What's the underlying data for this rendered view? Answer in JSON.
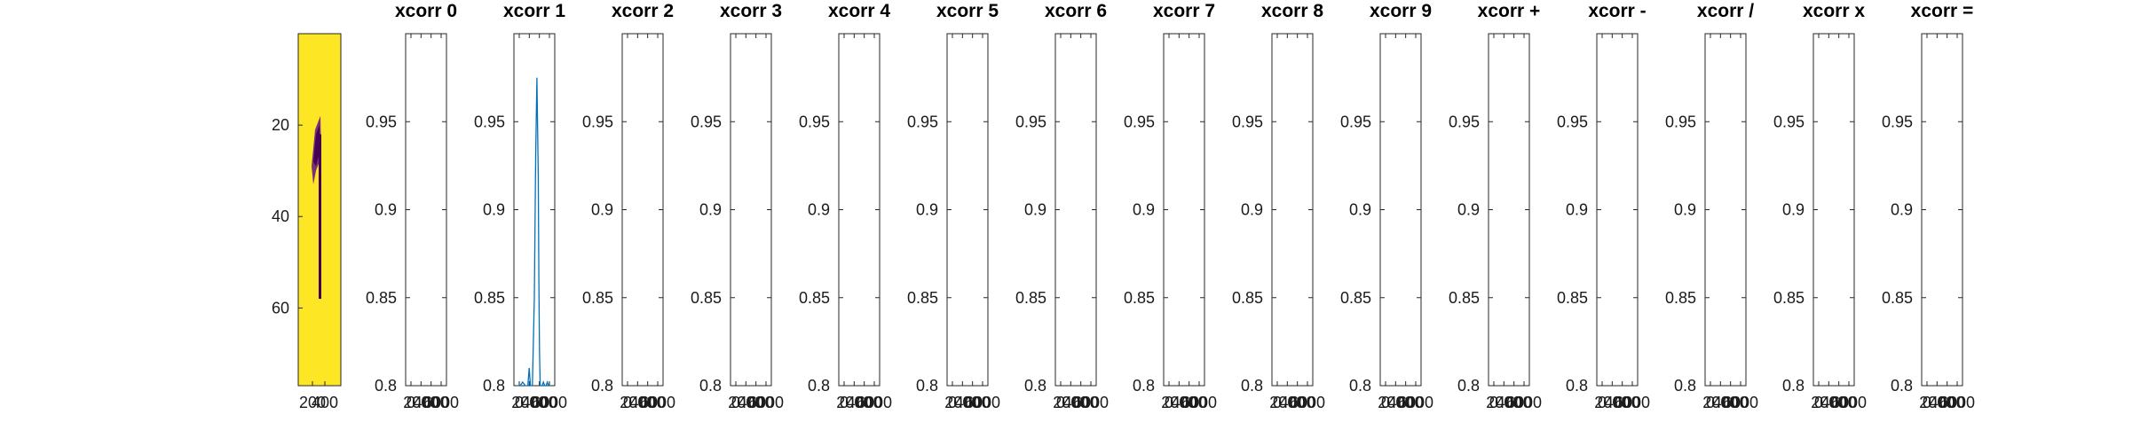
{
  "image_panel": {
    "background_color": "#fde725",
    "glyph_color": "#440154",
    "glyph_edge_color": "#7b2f79",
    "yticks": [
      20,
      40,
      60
    ],
    "ylim": [
      0,
      77
    ],
    "xtick_labels": [
      "200",
      "400"
    ]
  },
  "chart_data": [
    {
      "type": "line",
      "title": "xcorr 0",
      "ylim": [
        0.8,
        1.0
      ],
      "yticks": [
        0.8,
        0.85,
        0.9,
        0.95
      ],
      "xtick_labels": [
        "0",
        "2000",
        "4000",
        "6000"
      ],
      "color": "#0072bd",
      "series": []
    },
    {
      "type": "line",
      "title": "xcorr 1",
      "ylim": [
        0.8,
        1.0
      ],
      "yticks": [
        0.8,
        0.85,
        0.9,
        0.95
      ],
      "xtick_labels": [
        "0",
        "2000",
        "4000",
        "6000"
      ],
      "color": "#0072bd",
      "series": [
        {
          "x": [
            0,
            40,
            80,
            120,
            160,
            180,
            200,
            210,
            230,
            260,
            280,
            300,
            320,
            330,
            340,
            350,
            360,
            380,
            400,
            420,
            440,
            460,
            480,
            520
          ],
          "y": [
            0.8,
            0.8,
            0.802,
            0.8,
            0.8,
            0.81,
            0.8,
            0.8,
            0.8,
            0.85,
            0.93,
            0.975,
            0.92,
            0.86,
            0.82,
            0.8,
            0.8,
            0.8,
            0.802,
            0.8,
            0.8,
            0.802,
            0.8,
            0.8
          ]
        }
      ]
    },
    {
      "type": "line",
      "title": "xcorr 2",
      "ylim": [
        0.8,
        1.0
      ],
      "yticks": [
        0.8,
        0.85,
        0.9,
        0.95
      ],
      "xtick_labels": [
        "0",
        "2000",
        "4000",
        "6000"
      ],
      "color": "#0072bd",
      "series": []
    },
    {
      "type": "line",
      "title": "xcorr 3",
      "ylim": [
        0.8,
        1.0
      ],
      "yticks": [
        0.8,
        0.85,
        0.9,
        0.95
      ],
      "xtick_labels": [
        "0",
        "2000",
        "4000",
        "6000"
      ],
      "color": "#0072bd",
      "series": []
    },
    {
      "type": "line",
      "title": "xcorr 4",
      "ylim": [
        0.8,
        1.0
      ],
      "yticks": [
        0.8,
        0.85,
        0.9,
        0.95
      ],
      "xtick_labels": [
        "0",
        "2000",
        "4000",
        "6000"
      ],
      "color": "#0072bd",
      "series": []
    },
    {
      "type": "line",
      "title": "xcorr 5",
      "ylim": [
        0.8,
        1.0
      ],
      "yticks": [
        0.8,
        0.85,
        0.9,
        0.95
      ],
      "xtick_labels": [
        "0",
        "2000",
        "4000",
        "6000"
      ],
      "color": "#0072bd",
      "series": []
    },
    {
      "type": "line",
      "title": "xcorr 6",
      "ylim": [
        0.8,
        1.0
      ],
      "yticks": [
        0.8,
        0.85,
        0.9,
        0.95
      ],
      "xtick_labels": [
        "0",
        "2000",
        "4000",
        "6000"
      ],
      "color": "#0072bd",
      "series": []
    },
    {
      "type": "line",
      "title": "xcorr 7",
      "ylim": [
        0.8,
        1.0
      ],
      "yticks": [
        0.8,
        0.85,
        0.9,
        0.95
      ],
      "xtick_labels": [
        "0",
        "2000",
        "4000",
        "6000"
      ],
      "color": "#0072bd",
      "series": []
    },
    {
      "type": "line",
      "title": "xcorr 8",
      "ylim": [
        0.8,
        1.0
      ],
      "yticks": [
        0.8,
        0.85,
        0.9,
        0.95
      ],
      "xtick_labels": [
        "0",
        "2000",
        "4000",
        "6000"
      ],
      "color": "#0072bd",
      "series": []
    },
    {
      "type": "line",
      "title": "xcorr 9",
      "ylim": [
        0.8,
        1.0
      ],
      "yticks": [
        0.8,
        0.85,
        0.9,
        0.95
      ],
      "xtick_labels": [
        "0",
        "2000",
        "4000",
        "6000"
      ],
      "color": "#0072bd",
      "series": []
    },
    {
      "type": "line",
      "title": "xcorr +",
      "ylim": [
        0.8,
        1.0
      ],
      "yticks": [
        0.8,
        0.85,
        0.9,
        0.95
      ],
      "xtick_labels": [
        "0",
        "2000",
        "4000",
        "6000"
      ],
      "color": "#0072bd",
      "series": []
    },
    {
      "type": "line",
      "title": "xcorr -",
      "ylim": [
        0.8,
        1.0
      ],
      "yticks": [
        0.8,
        0.85,
        0.9,
        0.95
      ],
      "xtick_labels": [
        "0",
        "2000",
        "4000",
        "6000"
      ],
      "color": "#0072bd",
      "series": []
    },
    {
      "type": "line",
      "title": "xcorr /",
      "ylim": [
        0.8,
        1.0
      ],
      "yticks": [
        0.8,
        0.85,
        0.9,
        0.95
      ],
      "xtick_labels": [
        "0",
        "2000",
        "4000",
        "6000"
      ],
      "color": "#0072bd",
      "series": []
    },
    {
      "type": "line",
      "title": "xcorr x",
      "ylim": [
        0.8,
        1.0
      ],
      "yticks": [
        0.8,
        0.85,
        0.9,
        0.95
      ],
      "xtick_labels": [
        "0",
        "2000",
        "4000",
        "6000"
      ],
      "color": "#0072bd",
      "series": []
    },
    {
      "type": "line",
      "title": "xcorr =",
      "ylim": [
        0.8,
        1.0
      ],
      "yticks": [
        0.8,
        0.85,
        0.9,
        0.95
      ],
      "xtick_labels": [
        "0",
        "2000",
        "4000",
        "6000"
      ],
      "color": "#0072bd",
      "series": []
    }
  ]
}
